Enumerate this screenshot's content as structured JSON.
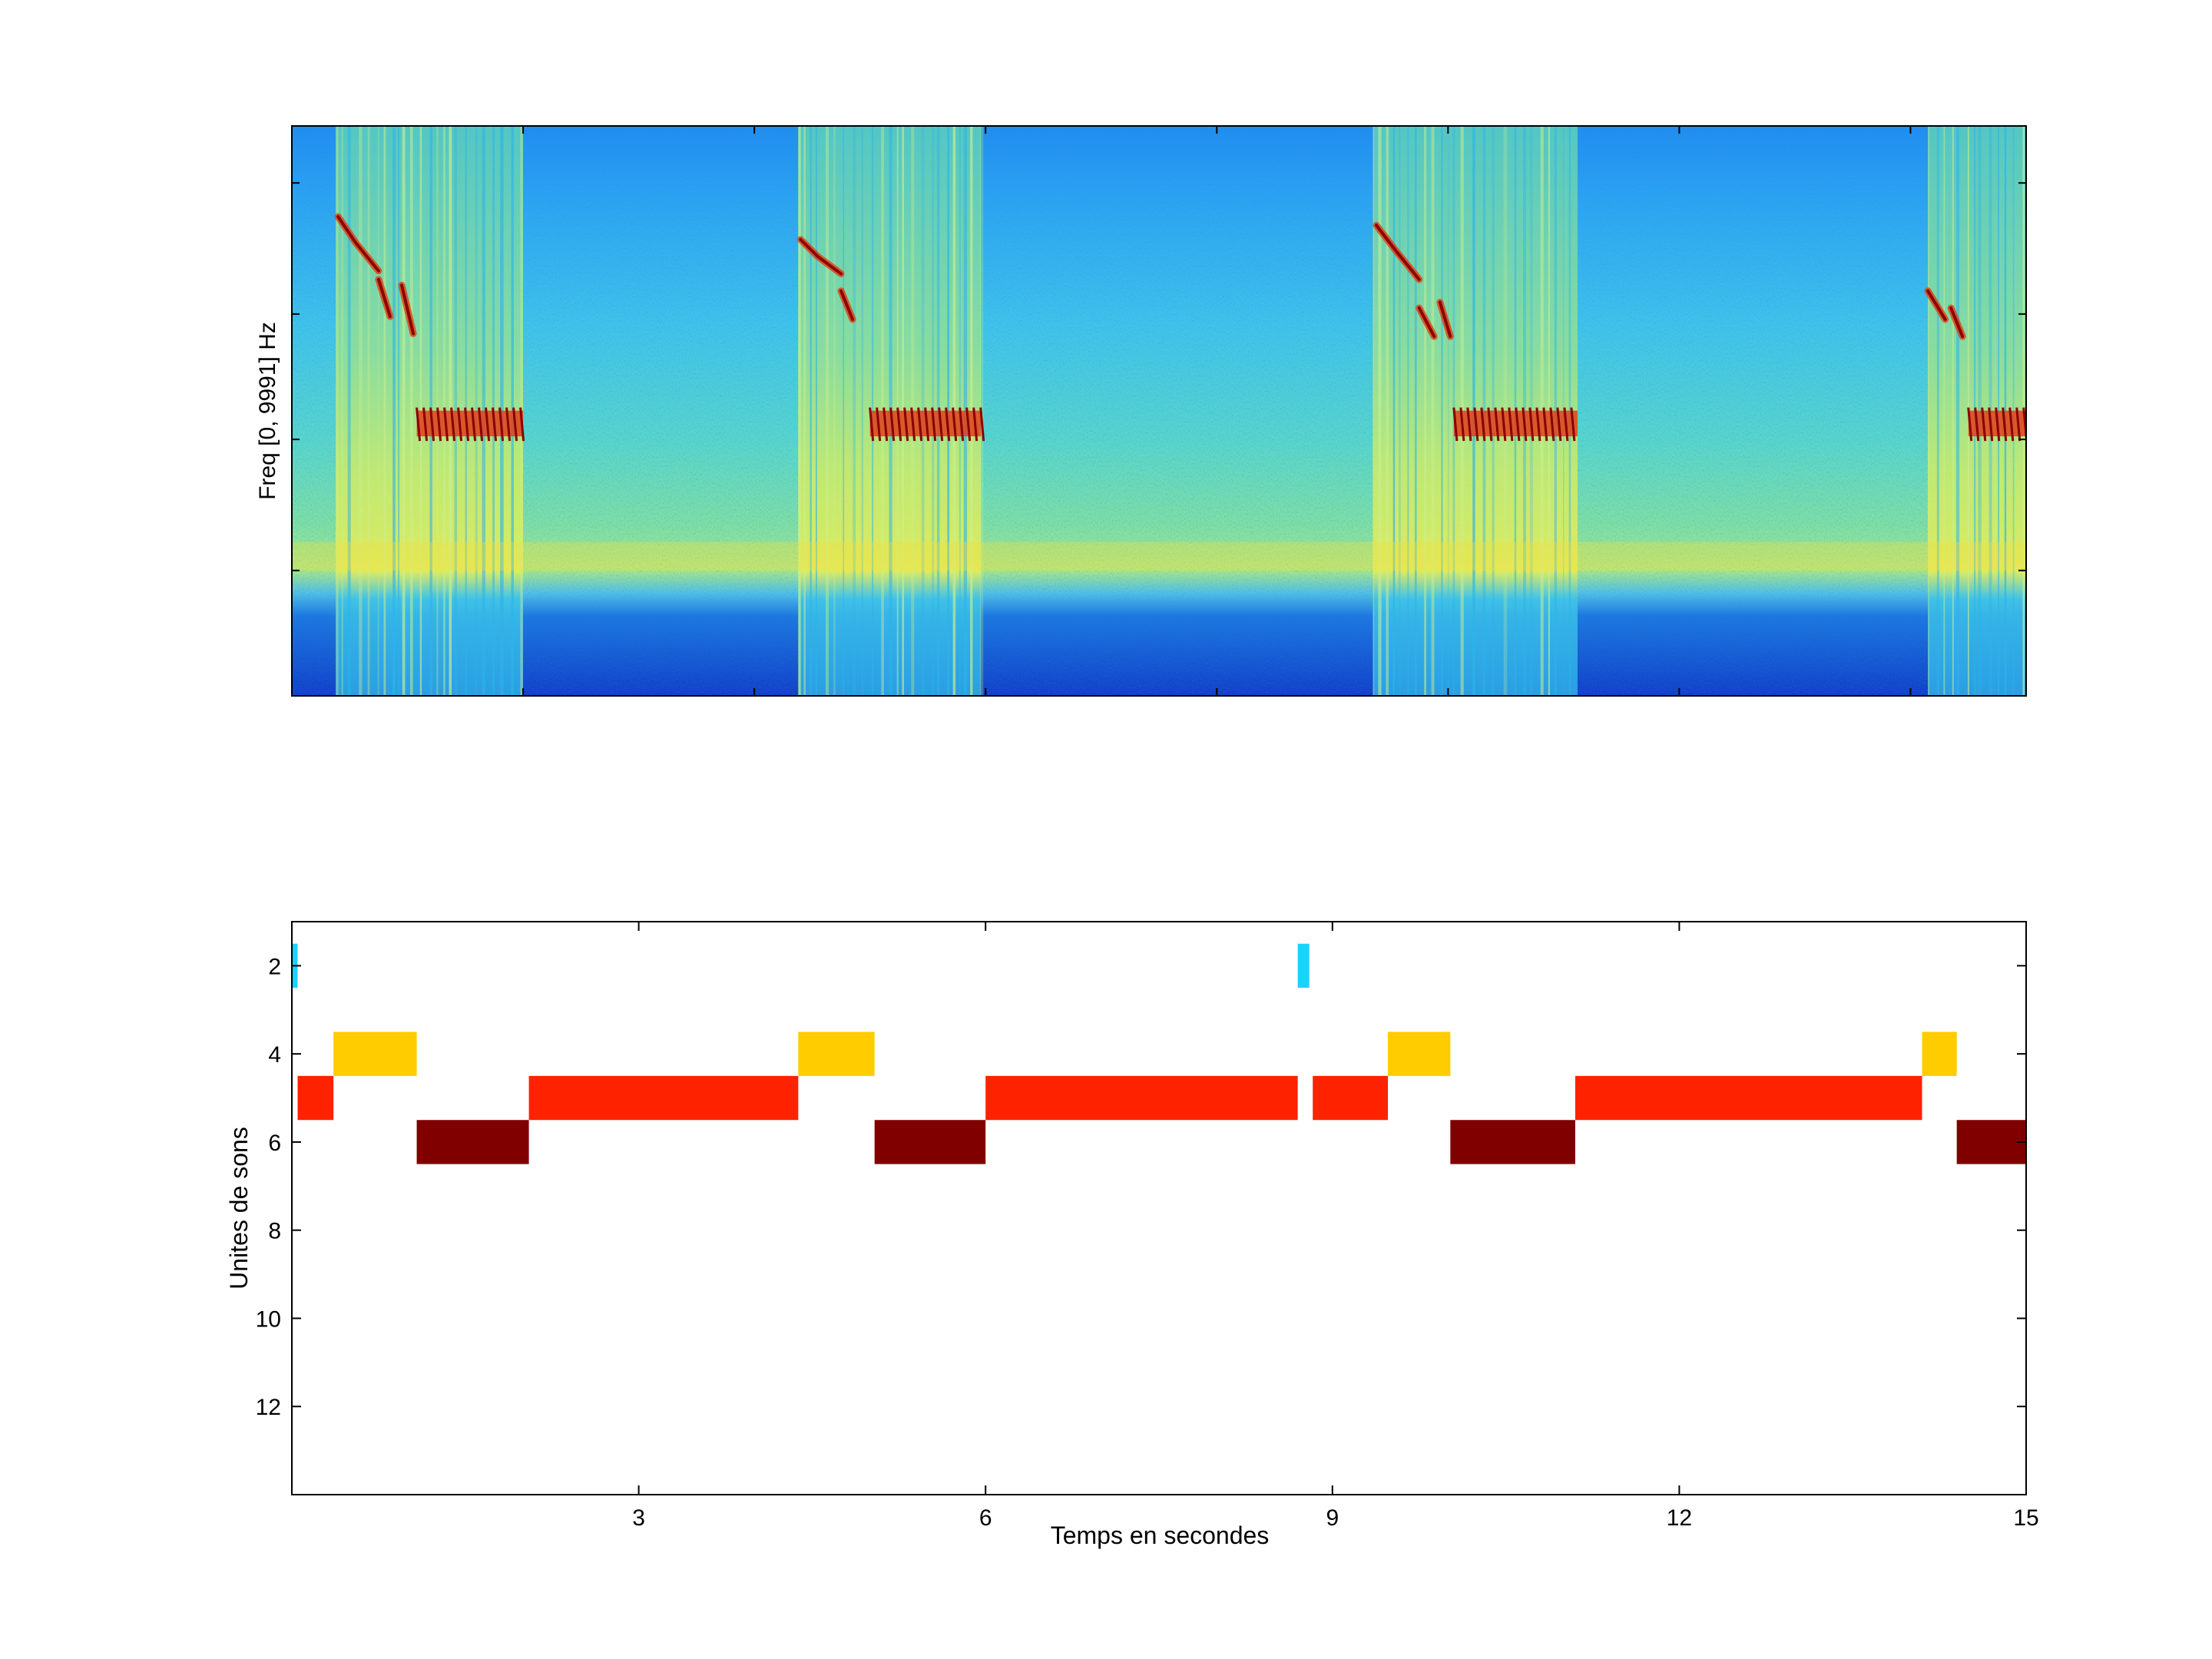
{
  "chart_data": [
    {
      "type": "heatmap",
      "title": "",
      "xlabel": "",
      "ylabel": "Freq [0, 9991] Hz",
      "xlim": [
        0,
        15
      ],
      "ylim": [
        0,
        9991
      ],
      "colormap": "jet",
      "x_ticks": [
        0,
        2,
        4,
        6,
        8,
        10,
        12,
        14
      ],
      "song_segments": [
        {
          "start": 0.38,
          "end": 2.0
        },
        {
          "start": 4.38,
          "end": 5.96
        },
        {
          "start": 9.35,
          "end": 11.12
        },
        {
          "start": 14.15,
          "end": 15.0
        }
      ],
      "syllables": [
        {
          "x": [
            0.4,
            0.55,
            0.75
          ],
          "y": [
            8400,
            7950,
            7450
          ],
          "kind": "sweep"
        },
        {
          "x": [
            0.75,
            0.85
          ],
          "y": [
            7300,
            6650
          ],
          "kind": "sweep"
        },
        {
          "x": [
            0.95,
            1.05
          ],
          "y": [
            7200,
            6350
          ],
          "kind": "sweep"
        },
        {
          "x": [
            1.08,
            2.0
          ],
          "y": [
            5000,
            4550
          ],
          "kind": "trill"
        },
        {
          "x": [
            4.4,
            4.55,
            4.75
          ],
          "y": [
            8000,
            7700,
            7400
          ],
          "kind": "sweep"
        },
        {
          "x": [
            4.75,
            4.85
          ],
          "y": [
            7100,
            6600
          ],
          "kind": "sweep"
        },
        {
          "x": [
            5.0,
            5.96
          ],
          "y": [
            5000,
            4550
          ],
          "kind": "trill"
        },
        {
          "x": [
            9.38,
            9.55,
            9.75
          ],
          "y": [
            8250,
            7800,
            7300
          ],
          "kind": "sweep"
        },
        {
          "x": [
            9.75,
            9.88
          ],
          "y": [
            6800,
            6300
          ],
          "kind": "sweep"
        },
        {
          "x": [
            9.93,
            10.02
          ],
          "y": [
            6900,
            6300
          ],
          "kind": "sweep"
        },
        {
          "x": [
            10.05,
            11.12
          ],
          "y": [
            5000,
            4550
          ],
          "kind": "trill"
        },
        {
          "x": [
            14.15,
            14.3
          ],
          "y": [
            7100,
            6600
          ],
          "kind": "sweep"
        },
        {
          "x": [
            14.35,
            14.45
          ],
          "y": [
            6800,
            6300
          ],
          "kind": "sweep"
        },
        {
          "x": [
            14.5,
            15.0
          ],
          "y": [
            5000,
            4550
          ],
          "kind": "trill"
        }
      ]
    },
    {
      "type": "bar",
      "subtype": "state-timeline",
      "title": "",
      "xlabel": "Temps en secondes",
      "ylabel": "Unites de sons",
      "xlim": [
        0,
        15
      ],
      "ylim": [
        1,
        14
      ],
      "y_reversed": true,
      "x_ticks": [
        3,
        6,
        9,
        12,
        15
      ],
      "y_ticks": [
        2,
        4,
        6,
        8,
        10,
        12
      ],
      "state_colors": {
        "2": "#19d3ff",
        "4": "#ffcc00",
        "5": "#ff2200",
        "6": "#800000"
      },
      "segments": [
        {
          "state": 2,
          "start": 0.0,
          "end": 0.05
        },
        {
          "state": 5,
          "start": 0.05,
          "end": 0.36
        },
        {
          "state": 4,
          "start": 0.36,
          "end": 1.08
        },
        {
          "state": 6,
          "start": 1.08,
          "end": 2.05
        },
        {
          "state": 5,
          "start": 2.05,
          "end": 4.38
        },
        {
          "state": 4,
          "start": 4.38,
          "end": 5.04
        },
        {
          "state": 6,
          "start": 5.04,
          "end": 6.0
        },
        {
          "state": 5,
          "start": 6.0,
          "end": 8.7
        },
        {
          "state": 2,
          "start": 8.7,
          "end": 8.8
        },
        {
          "state": 5,
          "start": 8.83,
          "end": 9.48
        },
        {
          "state": 4,
          "start": 9.48,
          "end": 10.02
        },
        {
          "state": 6,
          "start": 10.02,
          "end": 11.1
        },
        {
          "state": 5,
          "start": 11.1,
          "end": 14.1
        },
        {
          "state": 4,
          "start": 14.1,
          "end": 14.4
        },
        {
          "state": 6,
          "start": 14.4,
          "end": 15.0
        }
      ]
    }
  ]
}
